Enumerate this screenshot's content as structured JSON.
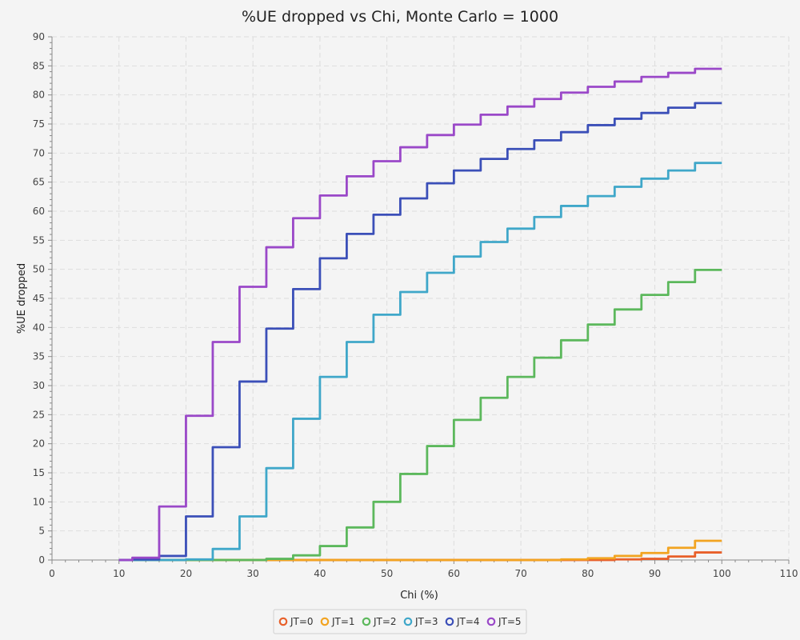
{
  "chart_data": {
    "type": "line",
    "title": "%UE dropped vs Chi, Monte Carlo = 1000",
    "xlabel": "Chi (%)",
    "ylabel": "%UE dropped",
    "xlim": [
      0,
      110
    ],
    "ylim": [
      0,
      90
    ],
    "xticks": [
      0,
      10,
      20,
      30,
      40,
      50,
      60,
      70,
      80,
      90,
      100,
      110
    ],
    "yticks": [
      0,
      5,
      10,
      15,
      20,
      25,
      30,
      35,
      40,
      45,
      50,
      55,
      60,
      65,
      70,
      75,
      80,
      85,
      90
    ],
    "grid": true,
    "legend_position": "bottom-center",
    "x_start": 10,
    "x_end": 100,
    "step_width": 4,
    "series": [
      {
        "name": "JT=0",
        "color": "#e8602a",
        "steps": [
          [
            10,
            0
          ],
          [
            84,
            0.1
          ],
          [
            88,
            0.2
          ],
          [
            92,
            0.6
          ],
          [
            96,
            1.3
          ]
        ]
      },
      {
        "name": "JT=1",
        "color": "#f2a421",
        "steps": [
          [
            10,
            0
          ],
          [
            76,
            0.1
          ],
          [
            80,
            0.3
          ],
          [
            84,
            0.7
          ],
          [
            88,
            1.2
          ],
          [
            92,
            2.1
          ],
          [
            96,
            3.3
          ]
        ]
      },
      {
        "name": "JT=2",
        "color": "#5cb85c",
        "steps": [
          [
            10,
            0
          ],
          [
            32,
            0.2
          ],
          [
            36,
            0.8
          ],
          [
            40,
            2.4
          ],
          [
            44,
            5.6
          ],
          [
            48,
            10.0
          ],
          [
            52,
            14.8
          ],
          [
            56,
            19.6
          ],
          [
            60,
            24.1
          ],
          [
            64,
            27.9
          ],
          [
            68,
            31.5
          ],
          [
            72,
            34.8
          ],
          [
            76,
            37.8
          ],
          [
            80,
            40.5
          ],
          [
            84,
            43.1
          ],
          [
            88,
            45.6
          ],
          [
            92,
            47.8
          ],
          [
            96,
            49.9
          ]
        ]
      },
      {
        "name": "JT=3",
        "color": "#3fa7c9",
        "steps": [
          [
            10,
            0
          ],
          [
            20,
            0.1
          ],
          [
            24,
            1.9
          ],
          [
            28,
            7.5
          ],
          [
            32,
            15.8
          ],
          [
            36,
            24.3
          ],
          [
            40,
            31.5
          ],
          [
            44,
            37.5
          ],
          [
            48,
            42.2
          ],
          [
            52,
            46.1
          ],
          [
            56,
            49.4
          ],
          [
            60,
            52.2
          ],
          [
            64,
            54.7
          ],
          [
            68,
            57.0
          ],
          [
            72,
            59.0
          ],
          [
            76,
            60.9
          ],
          [
            80,
            62.6
          ],
          [
            84,
            64.2
          ],
          [
            88,
            65.6
          ],
          [
            92,
            67.0
          ],
          [
            96,
            68.3
          ]
        ]
      },
      {
        "name": "JT=4",
        "color": "#3b4fb8",
        "steps": [
          [
            10,
            0
          ],
          [
            12,
            0.1
          ],
          [
            16,
            0.7
          ],
          [
            20,
            7.5
          ],
          [
            24,
            19.4
          ],
          [
            28,
            30.7
          ],
          [
            32,
            39.8
          ],
          [
            36,
            46.6
          ],
          [
            40,
            51.9
          ],
          [
            44,
            56.1
          ],
          [
            48,
            59.4
          ],
          [
            52,
            62.2
          ],
          [
            56,
            64.8
          ],
          [
            60,
            67.0
          ],
          [
            64,
            69.0
          ],
          [
            68,
            70.7
          ],
          [
            72,
            72.2
          ],
          [
            76,
            73.6
          ],
          [
            80,
            74.8
          ],
          [
            84,
            75.9
          ],
          [
            88,
            76.9
          ],
          [
            92,
            77.8
          ],
          [
            96,
            78.6
          ]
        ]
      },
      {
        "name": "JT=5",
        "color": "#9a48c8",
        "steps": [
          [
            10,
            0
          ],
          [
            12,
            0.4
          ],
          [
            16,
            9.2
          ],
          [
            20,
            24.8
          ],
          [
            24,
            37.5
          ],
          [
            28,
            47.0
          ],
          [
            32,
            53.8
          ],
          [
            36,
            58.8
          ],
          [
            40,
            62.7
          ],
          [
            44,
            66.0
          ],
          [
            48,
            68.6
          ],
          [
            52,
            71.0
          ],
          [
            56,
            73.1
          ],
          [
            60,
            74.9
          ],
          [
            64,
            76.6
          ],
          [
            68,
            78.0
          ],
          [
            72,
            79.3
          ],
          [
            76,
            80.4
          ],
          [
            80,
            81.4
          ],
          [
            84,
            82.3
          ],
          [
            88,
            83.1
          ],
          [
            92,
            83.8
          ],
          [
            96,
            84.5
          ]
        ]
      }
    ]
  }
}
